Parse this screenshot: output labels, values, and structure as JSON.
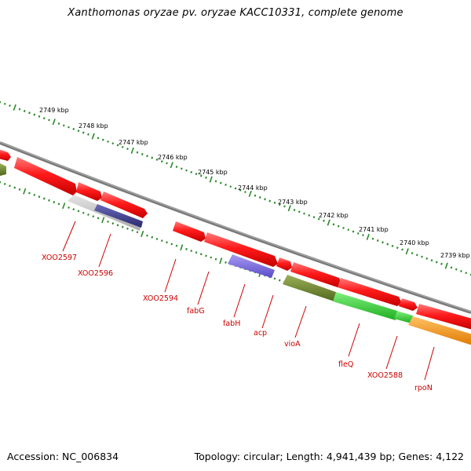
{
  "title": "Xanthomonas oryzae pv. oryzae KACC10331, complete genome",
  "accession": "Accession: NC_006834",
  "summary": "Topology: circular; Length: 4,941,439 bp; Genes: 4,122",
  "colors": {
    "backbone": "#8c8c8c",
    "ruler": "#2a8a2a",
    "label_red": "#cc0000",
    "gene_red": "#ff1a1a",
    "gene_grey": "#c8c8c8",
    "gene_navy": "#3c3c90",
    "gene_violet": "#7a6ae0",
    "gene_olive": "#6e8a2c",
    "gene_green": "#33cc33",
    "gene_orange": "#ff9900"
  },
  "kbp_labels": [
    "2749 kbp",
    "2748 kbp",
    "2747 kbp",
    "2746 kbp",
    "2745 kbp",
    "2744 kbp",
    "2743 kbp",
    "2742 kbp",
    "2741 kbp",
    "2740 kbp",
    "2739 kbp"
  ],
  "gene_labels": [
    "XOO2597",
    "XOO2596",
    "XOO2594",
    "fabG",
    "fabH",
    "acp",
    "vioA",
    "fleQ",
    "XOO2588",
    "rpoN"
  ]
}
